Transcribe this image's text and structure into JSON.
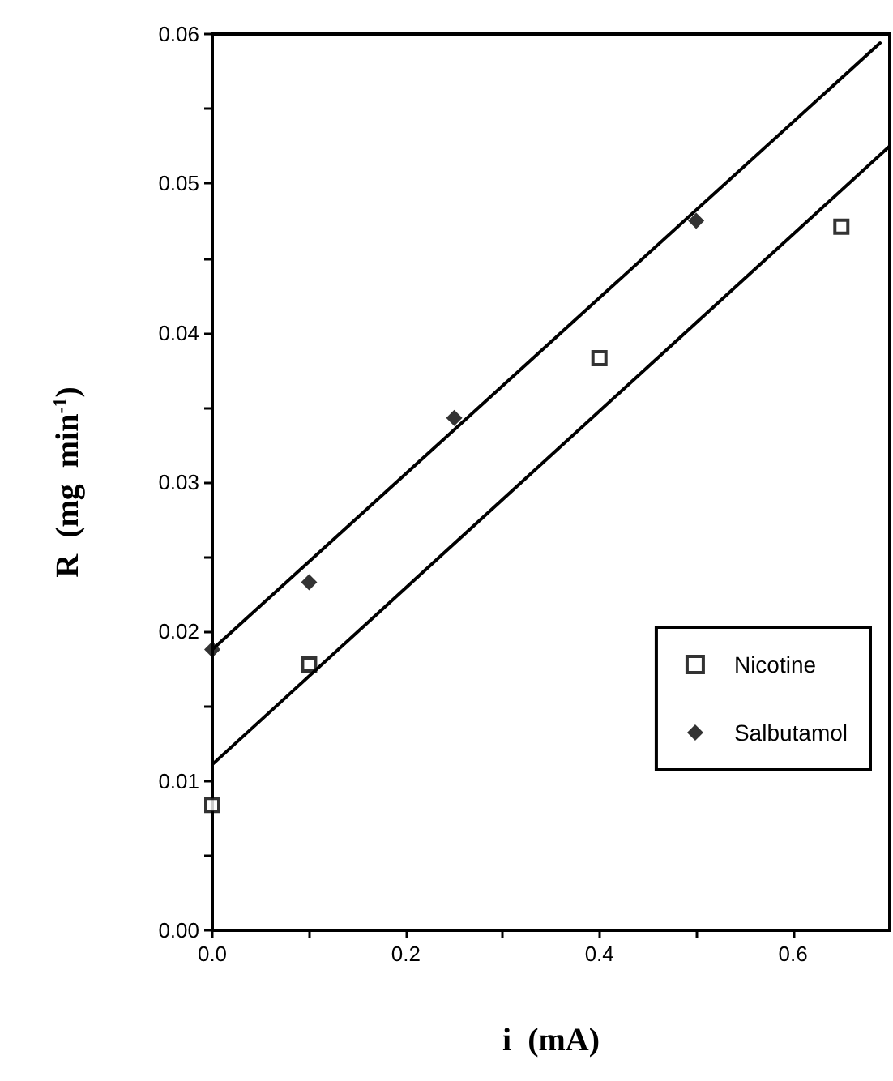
{
  "chart_data": {
    "type": "scatter",
    "xlabel": "i  (mA)",
    "ylabel": "R  (mg  min$^{-1}$)",
    "xlim": [
      0,
      0.7
    ],
    "ylim": [
      0,
      0.06
    ],
    "xticks": [
      {
        "value": 0,
        "label": "0.0"
      },
      {
        "value": 0.1,
        "label": null
      },
      {
        "value": 0.2,
        "label": "0.2"
      },
      {
        "value": 0.3,
        "label": null
      },
      {
        "value": 0.4,
        "label": "0.4"
      },
      {
        "value": 0.5,
        "label": null
      },
      {
        "value": 0.6,
        "label": "0.6"
      }
    ],
    "yticks": [
      {
        "value": 0,
        "label": "0.00"
      },
      {
        "value": 0.005,
        "label": null
      },
      {
        "value": 0.01,
        "label": "0.01"
      },
      {
        "value": 0.015,
        "label": null
      },
      {
        "value": 0.02,
        "label": "0.02"
      },
      {
        "value": 0.025,
        "label": null
      },
      {
        "value": 0.03,
        "label": "0.03"
      },
      {
        "value": 0.035,
        "label": null
      },
      {
        "value": 0.04,
        "label": "0.04"
      },
      {
        "value": 0.045,
        "label": null
      },
      {
        "value": 0.05,
        "label": "0.05"
      },
      {
        "value": 0.055,
        "label": null
      },
      {
        "value": 0.06,
        "label": "0.06"
      }
    ],
    "grid": false,
    "legend": "bottom right",
    "series": [
      {
        "name": "Nicotine",
        "color": "#000000",
        "marker": "square",
        "x": [
          0,
          0.1,
          0.4,
          0.65
        ],
        "values": [
          0.0084,
          0.0178,
          0.0383,
          0.0471
        ]
      },
      {
        "name": "Salbutamol",
        "color": "#000000",
        "marker": "diamond",
        "x": [
          0,
          0.1,
          0.25,
          0.5
        ],
        "values": [
          0.0188,
          0.0233,
          0.0343,
          0.0475
        ]
      },
      {
        "type": "line",
        "color": "#000000",
        "marker": "none",
        "line_style": "solid",
        "x": [
          0,
          0.7
        ],
        "values": [
          0.0111,
          0.0525
        ]
      },
      {
        "type": "line",
        "color": "#000000",
        "marker": "none",
        "line_style": "solid",
        "x": [
          0,
          0.69
        ],
        "values": [
          0.0188,
          0.0594
        ]
      }
    ]
  }
}
